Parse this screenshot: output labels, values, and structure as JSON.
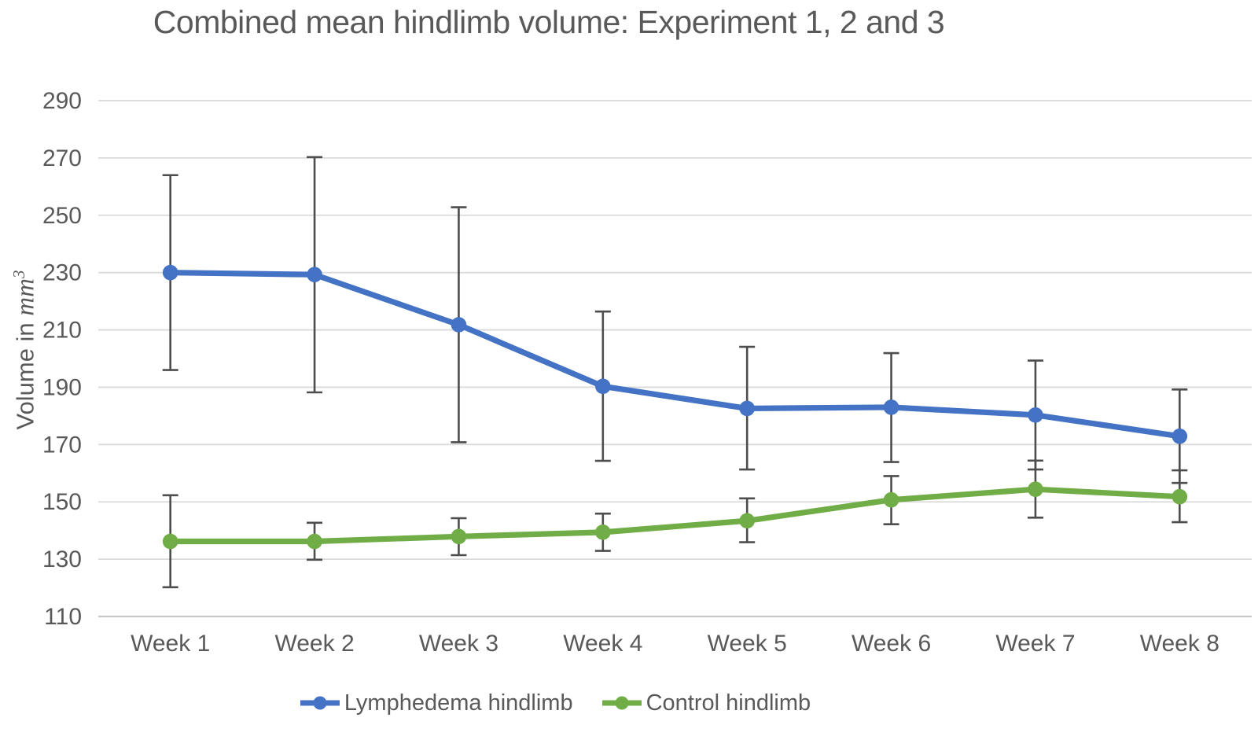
{
  "chart_data": {
    "type": "line",
    "title": "Combined mean hindlimb volume: Experiment 1, 2 and 3",
    "ylabel": "Volume in mm³",
    "ylabel_parts": {
      "regular": "Volume in ",
      "italic": "mm",
      "exponent": "3"
    },
    "xlabel": "",
    "categories": [
      "Week 1",
      "Week 2",
      "Week 3",
      "Week 4",
      "Week 5",
      "Week 6",
      "Week 7",
      "Week 8"
    ],
    "ylim": [
      110,
      290
    ],
    "ytick_step": 20,
    "ytick_labels": [
      "110",
      "130",
      "150",
      "170",
      "190",
      "210",
      "230",
      "250",
      "270",
      "290"
    ],
    "grid": true,
    "legend_position": "bottom",
    "series": [
      {
        "name": "Lymphedema hindlimb",
        "color": "#4472C4",
        "values": [
          230.0,
          229.3,
          211.8,
          190.3,
          182.6,
          183.0,
          180.3,
          172.9
        ],
        "error_upper": [
          264.0,
          270.3,
          252.8,
          216.4,
          204.1,
          201.9,
          199.3,
          189.2
        ],
        "error_lower": [
          196.0,
          188.2,
          170.8,
          164.3,
          161.3,
          163.9,
          161.3,
          156.6
        ]
      },
      {
        "name": "Control hindlimb",
        "color": "#70AD47",
        "values": [
          136.2,
          136.2,
          137.9,
          139.4,
          143.4,
          150.7,
          154.4,
          151.8
        ],
        "error_upper": [
          152.3,
          142.7,
          144.3,
          145.9,
          151.2,
          159.0,
          164.4,
          161.0
        ],
        "error_lower": [
          120.2,
          129.8,
          131.4,
          132.9,
          135.9,
          142.2,
          144.5,
          142.9
        ]
      }
    ],
    "style": {
      "gridline_color": "#DADADA",
      "axis_line_color": "#C9C7C7",
      "error_bar_color": "#4D4D4D",
      "text_color": "#595959",
      "background": "#FFFFFF"
    }
  }
}
